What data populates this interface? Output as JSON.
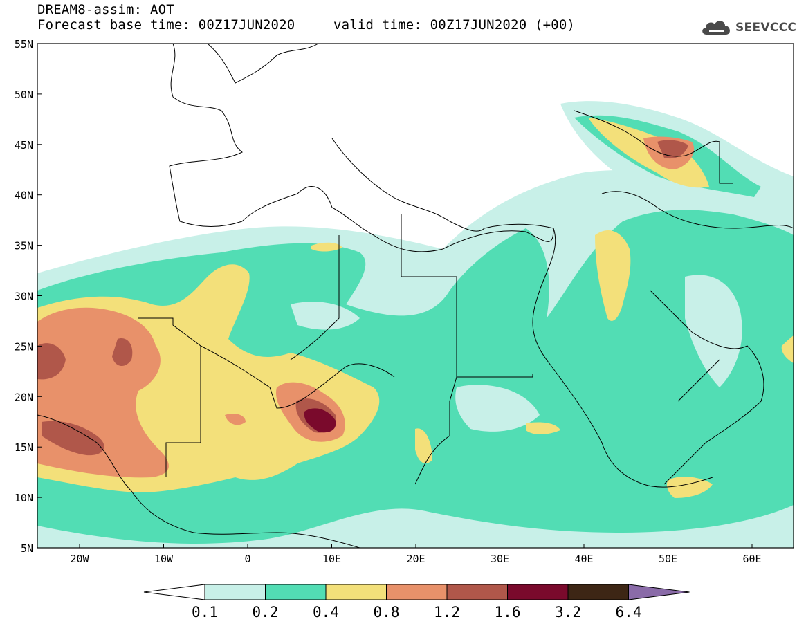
{
  "header": {
    "model_line": "DREAM8-assim: AOT",
    "base_time": "Forecast base time: 00Z17JUN2020",
    "valid_time": "valid time: 00Z17JUN2020 (+00)"
  },
  "logo": {
    "text": "SEEVCCC",
    "icon": "cloud-icon"
  },
  "axes": {
    "lat_labels": [
      "55N",
      "50N",
      "45N",
      "40N",
      "35N",
      "30N",
      "25N",
      "20N",
      "15N",
      "10N",
      "5N"
    ],
    "lon_labels": [
      "20W",
      "10W",
      "0",
      "10E",
      "20E",
      "30E",
      "40E",
      "50E",
      "60E"
    ]
  },
  "colorbar": {
    "labels": [
      "0.1",
      "0.2",
      "0.4",
      "0.8",
      "1.2",
      "1.6",
      "3.2",
      "6.4"
    ],
    "colors": [
      "#ffffff",
      "#c8f0e8",
      "#52ddb4",
      "#f3e07a",
      "#e8916a",
      "#b0574a",
      "#7a0a2c",
      "#3d2615",
      "#8a6ba8"
    ]
  },
  "colors": {
    "land": "#ffffff",
    "coast": "#000000"
  }
}
